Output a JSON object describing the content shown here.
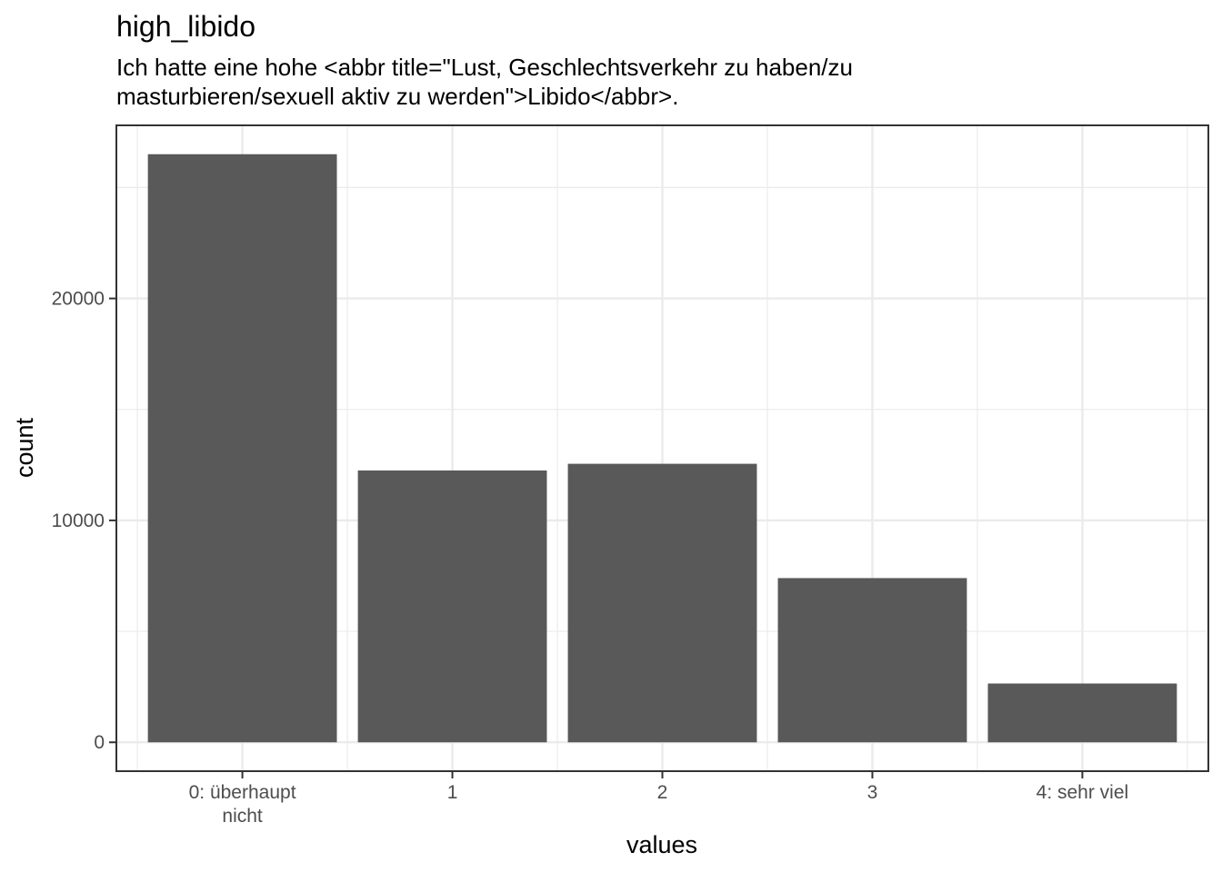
{
  "chart_data": {
    "type": "bar",
    "title": "high_libido",
    "subtitle": [
      "Ich hatte eine hohe <abbr title=\"Lust, Geschlechtsverkehr zu haben/zu",
      "masturbieren/sexuell aktiv zu werden\">Libido</abbr>."
    ],
    "xlabel": "values",
    "ylabel": "count",
    "categories": [
      [
        "0: überhaupt",
        "nicht"
      ],
      [
        "1"
      ],
      [
        "2"
      ],
      [
        "3"
      ],
      [
        "4: sehr viel"
      ]
    ],
    "values": [
      26500,
      12250,
      12550,
      7400,
      2650
    ],
    "ylim": [
      -1300,
      27800
    ],
    "yticks": [
      0,
      10000,
      20000
    ],
    "ytick_labels": [
      "0",
      "10000",
      "20000"
    ],
    "grid": true,
    "colors": {
      "bar": "#595959",
      "panel_border": "#333333",
      "grid": "#ebebeb",
      "tick_text": "#4d4d4d"
    }
  }
}
